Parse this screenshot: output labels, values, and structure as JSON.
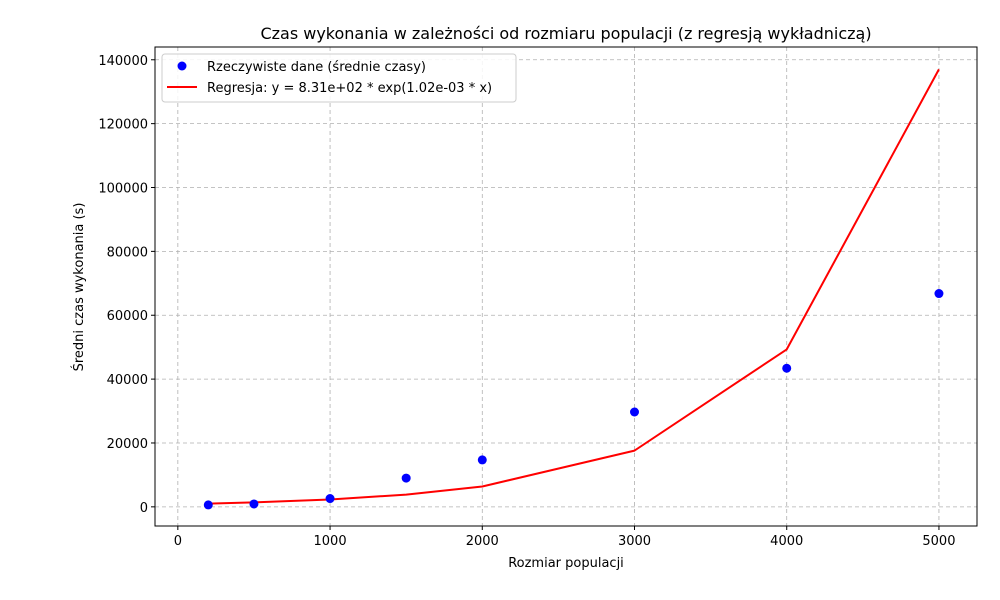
{
  "chart_data": {
    "type": "scatter",
    "title": "Czas wykonania w zależności od rozmiaru populacji (z regresją wykładniczą)",
    "xlabel": "Rozmiar populacji",
    "ylabel": "Średni czas wykonania (s)",
    "xlim": [
      -150,
      5250
    ],
    "ylim": [
      -6000,
      144000
    ],
    "xticks": [
      0,
      1000,
      2000,
      3000,
      4000,
      5000
    ],
    "xtick_labels": [
      "0",
      "1000",
      "2000",
      "3000",
      "4000",
      "5000"
    ],
    "yticks": [
      0,
      20000,
      40000,
      60000,
      80000,
      100000,
      120000,
      140000
    ],
    "ytick_labels": [
      "0",
      "20000",
      "40000",
      "60000",
      "80000",
      "100000",
      "120000",
      "140000"
    ],
    "grid": true,
    "legend_position": "top-left",
    "series": [
      {
        "name": "Rzeczywiste dane (średnie czasy)",
        "kind": "scatter",
        "color": "#0000ff",
        "x": [
          200,
          500,
          1000,
          1500,
          2000,
          3000,
          4000,
          5000
        ],
        "y": [
          600,
          900,
          2600,
          9000,
          14700,
          29700,
          43400,
          66800
        ]
      },
      {
        "name": "Regresja: y = 8.31e+02 * exp(1.02e-03 * x)",
        "kind": "line",
        "color": "#ff0000",
        "x": [
          200,
          500,
          1000,
          1500,
          2000,
          3000,
          4000,
          5000
        ],
        "y": [
          1020,
          1390,
          2310,
          3840,
          6380,
          17600,
          49300,
          137000
        ]
      }
    ]
  }
}
